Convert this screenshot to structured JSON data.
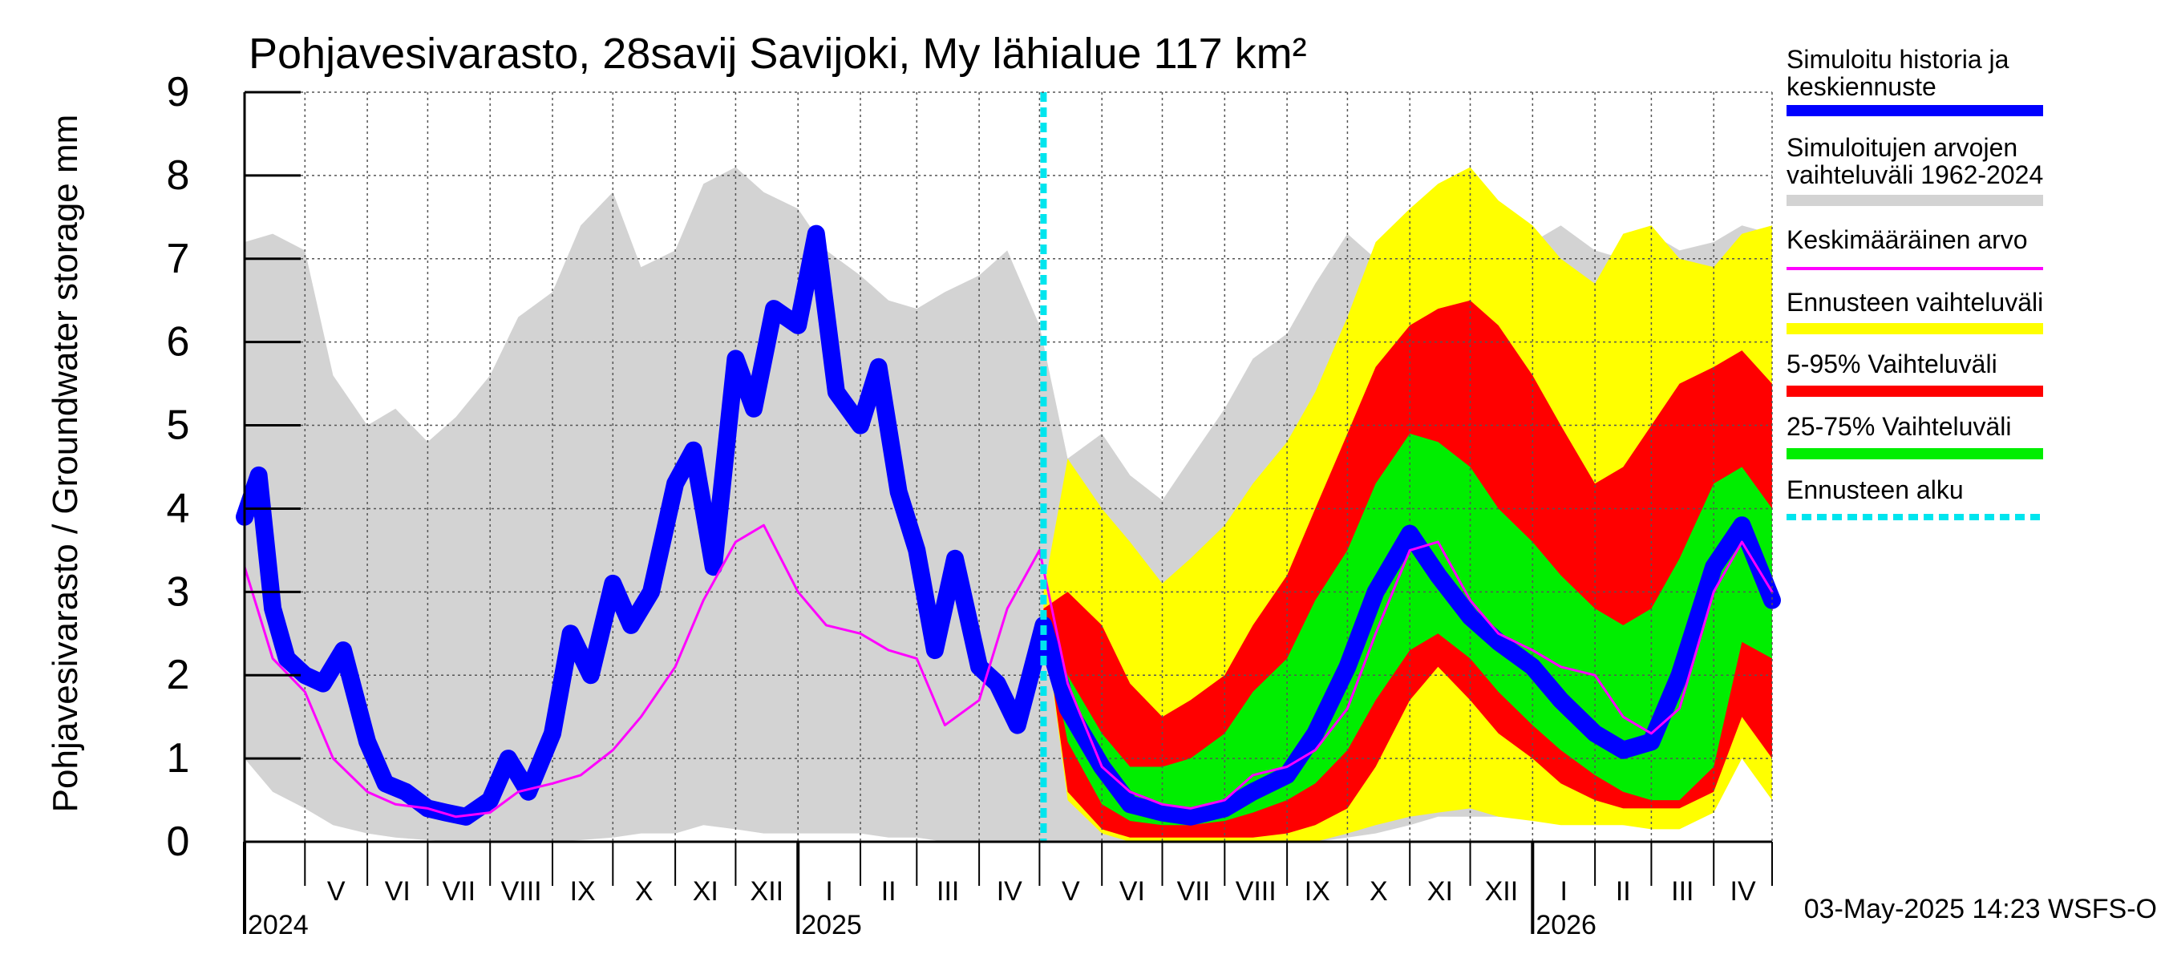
{
  "chart_data": {
    "type": "area",
    "title": "Pohjavesivarasto, 28savij Savijoki, My lähialue 117 km²",
    "ylabel": "Pohjavesivarasto / Groundwater storage   mm",
    "ylim": [
      0,
      9
    ],
    "yticks": [
      "0",
      "1",
      "2",
      "3",
      "4",
      "5",
      "6",
      "7",
      "8",
      "9"
    ],
    "xlim": [
      "2024-04-01",
      "2026-04-30"
    ],
    "forecast_start": "2025-05-03",
    "grid": true,
    "legend_position": "right",
    "months": [
      {
        "start": "2024-04-01",
        "label": ""
      },
      {
        "start": "2024-05-01",
        "label": "V"
      },
      {
        "start": "2024-06-01",
        "label": "VI"
      },
      {
        "start": "2024-07-01",
        "label": "VII"
      },
      {
        "start": "2024-08-01",
        "label": "VIII"
      },
      {
        "start": "2024-09-01",
        "label": "IX"
      },
      {
        "start": "2024-10-01",
        "label": "X"
      },
      {
        "start": "2024-11-01",
        "label": "XI"
      },
      {
        "start": "2024-12-01",
        "label": "XII"
      },
      {
        "start": "2025-01-01",
        "label": "I"
      },
      {
        "start": "2025-02-01",
        "label": "II"
      },
      {
        "start": "2025-03-01",
        "label": "III"
      },
      {
        "start": "2025-04-01",
        "label": "IV"
      },
      {
        "start": "2025-05-01",
        "label": "V"
      },
      {
        "start": "2025-06-01",
        "label": "VI"
      },
      {
        "start": "2025-07-01",
        "label": "VII"
      },
      {
        "start": "2025-08-01",
        "label": "VIII"
      },
      {
        "start": "2025-09-01",
        "label": "IX"
      },
      {
        "start": "2025-10-01",
        "label": "X"
      },
      {
        "start": "2025-11-01",
        "label": "XI"
      },
      {
        "start": "2025-12-01",
        "label": "XII"
      },
      {
        "start": "2026-01-01",
        "label": "I"
      },
      {
        "start": "2026-02-01",
        "label": "II"
      },
      {
        "start": "2026-03-01",
        "label": "III"
      },
      {
        "start": "2026-04-01",
        "label": "IV"
      }
    ],
    "years": [
      {
        "date": "2024-04-01",
        "label": "2024"
      },
      {
        "date": "2025-01-01",
        "label": "2025"
      },
      {
        "date": "2026-01-01",
        "label": "2026"
      }
    ],
    "series": [
      {
        "name": "Simuloitujen arvojen vaihteluväli 1962-2024",
        "kind": "band",
        "color": "#d3d3d3",
        "x": [
          "2024-04-01",
          "2024-04-15",
          "2024-05-01",
          "2024-05-15",
          "2024-06-01",
          "2024-06-15",
          "2024-07-01",
          "2024-07-15",
          "2024-08-01",
          "2024-08-15",
          "2024-09-01",
          "2024-09-15",
          "2024-10-01",
          "2024-10-15",
          "2024-11-01",
          "2024-11-15",
          "2024-12-01",
          "2024-12-15",
          "2025-01-01",
          "2025-01-15",
          "2025-02-01",
          "2025-02-15",
          "2025-03-01",
          "2025-03-15",
          "2025-04-01",
          "2025-04-15",
          "2025-05-01",
          "2025-05-15",
          "2025-06-01",
          "2025-06-15",
          "2025-07-01",
          "2025-07-15",
          "2025-08-01",
          "2025-08-15",
          "2025-09-01",
          "2025-09-15",
          "2025-10-01",
          "2025-10-15",
          "2025-11-01",
          "2025-11-15",
          "2025-12-01",
          "2025-12-15",
          "2026-01-01",
          "2026-01-15",
          "2026-02-01",
          "2026-02-15",
          "2026-03-01",
          "2026-03-15",
          "2026-04-01",
          "2026-04-15",
          "2026-04-30"
        ],
        "upper": [
          7.2,
          7.3,
          7.1,
          5.6,
          5.0,
          5.2,
          4.8,
          5.1,
          5.6,
          6.3,
          6.6,
          7.4,
          7.8,
          6.9,
          7.1,
          7.9,
          8.1,
          7.8,
          7.6,
          7.1,
          6.8,
          6.5,
          6.4,
          6.6,
          6.8,
          7.1,
          6.2,
          4.6,
          4.9,
          4.4,
          4.1,
          4.6,
          5.2,
          5.8,
          6.1,
          6.7,
          7.3,
          7.0,
          7.4,
          7.6,
          7.3,
          7.0,
          7.2,
          7.4,
          7.1,
          7.0,
          7.3,
          7.1,
          7.2,
          7.4,
          7.3
        ],
        "lower": [
          1.0,
          0.6,
          0.4,
          0.2,
          0.1,
          0.05,
          0.02,
          0.0,
          0.0,
          0.0,
          0.0,
          0.02,
          0.05,
          0.1,
          0.1,
          0.2,
          0.15,
          0.1,
          0.1,
          0.1,
          0.1,
          0.05,
          0.05,
          0.0,
          0.0,
          0.0,
          0.0,
          0.0,
          0.0,
          0.0,
          0.0,
          0.0,
          0.0,
          0.0,
          0.0,
          0.0,
          0.05,
          0.1,
          0.2,
          0.3,
          0.3,
          0.3,
          0.3,
          0.3,
          0.25,
          0.2,
          0.2,
          0.25,
          0.6,
          1.3,
          0.8
        ]
      },
      {
        "name": "Ennusteen vaihteluväli",
        "kind": "band",
        "color": "#ffff00",
        "x": [
          "2025-05-03",
          "2025-05-15",
          "2025-06-01",
          "2025-06-15",
          "2025-07-01",
          "2025-07-15",
          "2025-08-01",
          "2025-08-15",
          "2025-09-01",
          "2025-09-15",
          "2025-10-01",
          "2025-10-15",
          "2025-11-01",
          "2025-11-15",
          "2025-12-01",
          "2025-12-15",
          "2026-01-01",
          "2026-01-15",
          "2026-02-01",
          "2026-02-15",
          "2026-03-01",
          "2026-03-15",
          "2026-04-01",
          "2026-04-15",
          "2026-04-30"
        ],
        "upper": [
          3.0,
          4.6,
          4.0,
          3.6,
          3.1,
          3.4,
          3.8,
          4.3,
          4.8,
          5.4,
          6.3,
          7.2,
          7.6,
          7.9,
          8.1,
          7.7,
          7.4,
          7.0,
          6.7,
          7.3,
          7.4,
          7.0,
          6.9,
          7.3,
          7.4
        ],
        "lower": [
          2.7,
          0.5,
          0.1,
          0.0,
          0.0,
          0.0,
          0.0,
          0.0,
          0.0,
          0.0,
          0.1,
          0.2,
          0.3,
          0.35,
          0.4,
          0.3,
          0.25,
          0.2,
          0.2,
          0.2,
          0.15,
          0.15,
          0.35,
          1.0,
          0.5
        ]
      },
      {
        "name": "5-95% Vaihteluväli",
        "kind": "band",
        "color": "#ff0000",
        "x": [
          "2025-05-03",
          "2025-05-15",
          "2025-06-01",
          "2025-06-15",
          "2025-07-01",
          "2025-07-15",
          "2025-08-01",
          "2025-08-15",
          "2025-09-01",
          "2025-09-15",
          "2025-10-01",
          "2025-10-15",
          "2025-11-01",
          "2025-11-15",
          "2025-12-01",
          "2025-12-15",
          "2026-01-01",
          "2026-01-15",
          "2026-02-01",
          "2026-02-15",
          "2026-03-01",
          "2026-03-15",
          "2026-04-01",
          "2026-04-15",
          "2026-04-30"
        ],
        "upper": [
          2.8,
          3.0,
          2.6,
          1.9,
          1.5,
          1.7,
          2.0,
          2.6,
          3.2,
          4.0,
          4.9,
          5.7,
          6.2,
          6.4,
          6.5,
          6.2,
          5.6,
          5.0,
          4.3,
          4.5,
          5.0,
          5.5,
          5.7,
          5.9,
          5.5
        ],
        "lower": [
          2.7,
          0.6,
          0.15,
          0.05,
          0.05,
          0.05,
          0.05,
          0.05,
          0.1,
          0.2,
          0.4,
          0.9,
          1.7,
          2.1,
          1.7,
          1.3,
          1.0,
          0.7,
          0.5,
          0.4,
          0.4,
          0.4,
          0.6,
          1.5,
          1.0
        ]
      },
      {
        "name": "25-75% Vaihteluväli",
        "kind": "band",
        "color": "#00ee00",
        "x": [
          "2025-05-03",
          "2025-05-15",
          "2025-06-01",
          "2025-06-15",
          "2025-07-01",
          "2025-07-15",
          "2025-08-01",
          "2025-08-15",
          "2025-09-01",
          "2025-09-15",
          "2025-10-01",
          "2025-10-15",
          "2025-11-01",
          "2025-11-15",
          "2025-12-01",
          "2025-12-15",
          "2026-01-01",
          "2026-01-15",
          "2026-02-01",
          "2026-02-15",
          "2026-03-01",
          "2026-03-15",
          "2026-04-01",
          "2026-04-15",
          "2026-04-30"
        ],
        "upper": [
          2.75,
          2.0,
          1.3,
          0.9,
          0.9,
          1.0,
          1.3,
          1.8,
          2.2,
          2.9,
          3.5,
          4.3,
          4.9,
          4.8,
          4.5,
          4.0,
          3.6,
          3.2,
          2.8,
          2.6,
          2.8,
          3.4,
          4.3,
          4.5,
          4.0
        ],
        "lower": [
          2.7,
          1.2,
          0.45,
          0.25,
          0.2,
          0.2,
          0.25,
          0.35,
          0.5,
          0.7,
          1.1,
          1.7,
          2.3,
          2.5,
          2.2,
          1.8,
          1.4,
          1.1,
          0.8,
          0.6,
          0.5,
          0.5,
          0.9,
          2.4,
          2.2
        ]
      },
      {
        "name": "Simuloitu historia ja keskiennuste",
        "kind": "line",
        "color": "#0000ff",
        "width": 22,
        "x": [
          "2024-04-01",
          "2024-04-08",
          "2024-04-15",
          "2024-04-22",
          "2024-05-01",
          "2024-05-10",
          "2024-05-20",
          "2024-06-01",
          "2024-06-10",
          "2024-06-20",
          "2024-07-01",
          "2024-07-10",
          "2024-07-20",
          "2024-08-01",
          "2024-08-10",
          "2024-08-20",
          "2024-09-01",
          "2024-09-10",
          "2024-09-20",
          "2024-10-01",
          "2024-10-10",
          "2024-10-20",
          "2024-11-01",
          "2024-11-10",
          "2024-11-20",
          "2024-12-01",
          "2024-12-10",
          "2024-12-20",
          "2025-01-01",
          "2025-01-10",
          "2025-01-20",
          "2025-02-01",
          "2025-02-10",
          "2025-02-20",
          "2025-03-01",
          "2025-03-10",
          "2025-03-20",
          "2025-04-01",
          "2025-04-10",
          "2025-04-20",
          "2025-05-03",
          "2025-05-15",
          "2025-06-01",
          "2025-06-15",
          "2025-07-01",
          "2025-07-15",
          "2025-08-01",
          "2025-08-15",
          "2025-09-01",
          "2025-09-15",
          "2025-10-01",
          "2025-10-15",
          "2025-11-01",
          "2025-11-15",
          "2025-12-01",
          "2025-12-15",
          "2026-01-01",
          "2026-01-15",
          "2026-02-01",
          "2026-02-15",
          "2026-03-01",
          "2026-03-15",
          "2026-04-01",
          "2026-04-15",
          "2026-04-30"
        ],
        "values": [
          3.9,
          4.4,
          2.8,
          2.2,
          2.0,
          1.9,
          2.3,
          1.2,
          0.7,
          0.6,
          0.4,
          0.35,
          0.3,
          0.5,
          1.0,
          0.6,
          1.3,
          2.5,
          2.0,
          3.1,
          2.6,
          3.0,
          4.3,
          4.7,
          3.3,
          5.8,
          5.2,
          6.4,
          6.2,
          7.3,
          5.4,
          5.0,
          5.7,
          4.2,
          3.5,
          2.3,
          3.4,
          2.1,
          1.9,
          1.4,
          2.6,
          1.6,
          0.9,
          0.45,
          0.35,
          0.3,
          0.4,
          0.6,
          0.8,
          1.3,
          2.1,
          3.0,
          3.7,
          3.2,
          2.7,
          2.4,
          2.1,
          1.7,
          1.3,
          1.1,
          1.2,
          2.0,
          3.3,
          3.8,
          2.9
        ]
      },
      {
        "name": "Keskimääräinen arvo",
        "kind": "line",
        "color": "#ff00ff",
        "width": 3,
        "x": [
          "2024-04-01",
          "2024-04-15",
          "2024-05-01",
          "2024-05-15",
          "2024-06-01",
          "2024-06-15",
          "2024-07-01",
          "2024-07-15",
          "2024-08-01",
          "2024-08-15",
          "2024-09-01",
          "2024-09-15",
          "2024-10-01",
          "2024-10-15",
          "2024-11-01",
          "2024-11-15",
          "2024-12-01",
          "2024-12-15",
          "2025-01-01",
          "2025-01-15",
          "2025-02-01",
          "2025-02-15",
          "2025-03-01",
          "2025-03-15",
          "2025-04-01",
          "2025-04-15",
          "2025-05-01",
          "2025-05-15",
          "2025-06-01",
          "2025-06-15",
          "2025-07-01",
          "2025-07-15",
          "2025-08-01",
          "2025-08-15",
          "2025-09-01",
          "2025-09-15",
          "2025-10-01",
          "2025-10-15",
          "2025-11-01",
          "2025-11-15",
          "2025-12-01",
          "2025-12-15",
          "2026-01-01",
          "2026-01-15",
          "2026-02-01",
          "2026-02-15",
          "2026-03-01",
          "2026-03-15",
          "2026-04-01",
          "2026-04-15",
          "2026-04-30"
        ],
        "values": [
          3.3,
          2.2,
          1.8,
          1.0,
          0.6,
          0.45,
          0.4,
          0.3,
          0.35,
          0.6,
          0.7,
          0.8,
          1.1,
          1.5,
          2.1,
          2.9,
          3.6,
          3.8,
          3.0,
          2.6,
          2.5,
          2.3,
          2.2,
          1.4,
          1.7,
          2.8,
          3.5,
          1.9,
          0.9,
          0.6,
          0.45,
          0.4,
          0.5,
          0.8,
          0.9,
          1.1,
          1.6,
          2.5,
          3.5,
          3.6,
          2.9,
          2.5,
          2.3,
          2.1,
          2.0,
          1.5,
          1.3,
          1.6,
          3.0,
          3.6,
          3.0
        ]
      }
    ],
    "legend": [
      {
        "label": "Simuloitu historia ja\nkeskiennuste",
        "color": "#0000ff",
        "style": "thick"
      },
      {
        "label": "Simuloitujen arvojen\nvaihteluväli 1962-2024",
        "color": "#d3d3d3",
        "style": "thick"
      },
      {
        "label": "Keskimääräinen arvo",
        "color": "#ff00ff",
        "style": "thin"
      },
      {
        "label": "Ennusteen vaihteluväli",
        "color": "#ffff00",
        "style": "thick"
      },
      {
        "label": "5-95% Vaihteluväli",
        "color": "#ff0000",
        "style": "thick"
      },
      {
        "label": "25-75% Vaihteluväli",
        "color": "#00ee00",
        "style": "thick"
      },
      {
        "label": "Ennusteen alku",
        "color": "#00e5ee",
        "style": "dashed"
      }
    ],
    "footer": "03-May-2025 14:23 WSFS-O"
  }
}
